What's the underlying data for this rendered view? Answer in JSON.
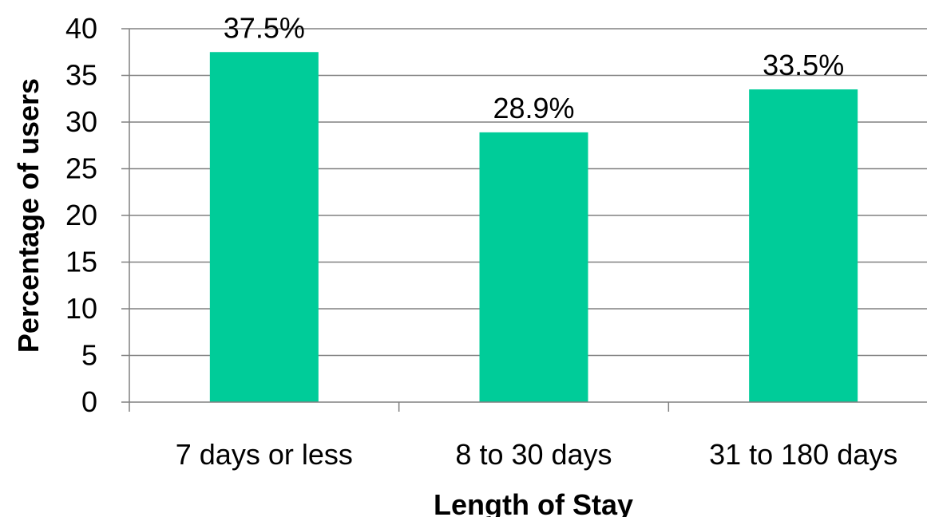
{
  "chart_data": {
    "type": "bar",
    "title": "",
    "xlabel": "Length of Stay",
    "ylabel": "Percentage of users",
    "categories": [
      "7 days or less",
      "8 to 30 days",
      "31 to 180 days"
    ],
    "values": [
      37.5,
      28.9,
      33.5
    ],
    "data_labels": [
      "37.5%",
      "28.9%",
      "33.5%"
    ],
    "ylim": [
      0,
      40
    ],
    "yticks": [
      0,
      5,
      10,
      15,
      20,
      25,
      30,
      35,
      40
    ],
    "grid": true,
    "legend": "none",
    "bar_color": "#00CC99",
    "grid_color": "#808080"
  }
}
